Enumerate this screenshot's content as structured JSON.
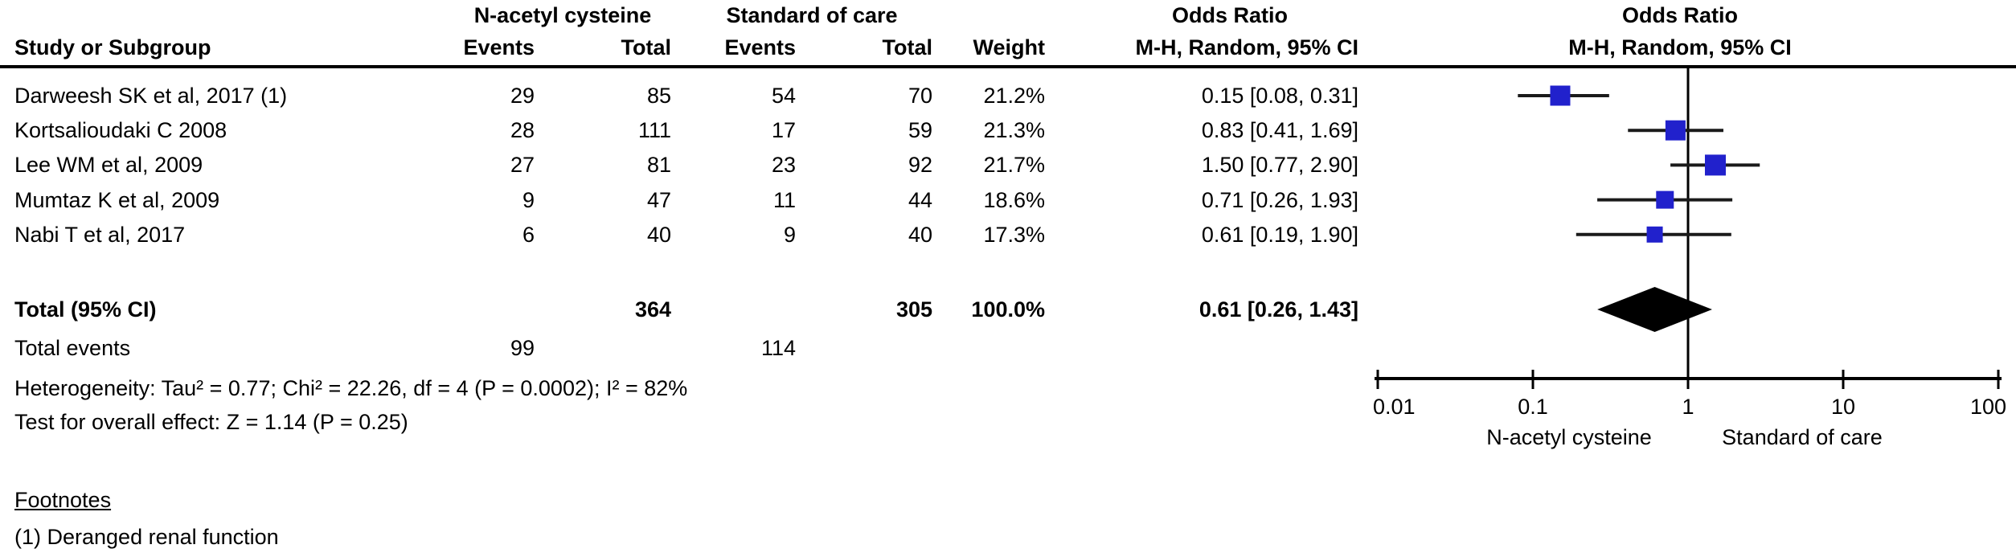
{
  "table": {
    "group1_header": "N-acetyl cysteine",
    "group2_header": "Standard of care",
    "or_header_line1": "Odds Ratio",
    "or_header_line2": "M-H, Random, 95% CI",
    "plot_header_line1": "Odds Ratio",
    "plot_header_line2": "M-H, Random, 95% CI",
    "col_study": "Study or Subgroup",
    "col_events": "Events",
    "col_total": "Total",
    "col_weight": "Weight",
    "rows": [
      {
        "study": "Darweesh SK et al, 2017 (1)",
        "e1": "29",
        "t1": "85",
        "e2": "54",
        "t2": "70",
        "weight": "21.2%",
        "or_ci": "0.15 [0.08, 0.31]"
      },
      {
        "study": "Kortsalioudaki C 2008",
        "e1": "28",
        "t1": "111",
        "e2": "17",
        "t2": "59",
        "weight": "21.3%",
        "or_ci": "0.83 [0.41, 1.69]"
      },
      {
        "study": "Lee WM et al, 2009",
        "e1": "27",
        "t1": "81",
        "e2": "23",
        "t2": "92",
        "weight": "21.7%",
        "or_ci": "1.50 [0.77, 2.90]"
      },
      {
        "study": "Mumtaz K et al, 2009",
        "e1": "9",
        "t1": "47",
        "e2": "11",
        "t2": "44",
        "weight": "18.6%",
        "or_ci": "0.71 [0.26, 1.93]"
      },
      {
        "study": "Nabi T et al, 2017",
        "e1": "6",
        "t1": "40",
        "e2": "9",
        "t2": "40",
        "weight": "17.3%",
        "or_ci": "0.61 [0.19, 1.90]"
      }
    ],
    "total_row": {
      "label": "Total (95% CI)",
      "t1": "364",
      "t2": "305",
      "weight": "100.0%",
      "or_ci": "0.61 [0.26, 1.43]"
    },
    "total_events_row": {
      "label": "Total events",
      "e1": "99",
      "e2": "114"
    },
    "heterogeneity": "Heterogeneity: Tau² = 0.77; Chi² = 22.26, df = 4 (P = 0.0002); I² = 82%",
    "overall_effect": "Test for overall effect: Z = 1.14 (P = 0.25)",
    "footnotes_label": "Footnotes",
    "footnote_1": "(1) Deranged renal function"
  },
  "chart_data": {
    "type": "forest",
    "title": "Odds Ratio",
    "effect_measure": "M-H, Random, 95% CI",
    "x_scale": "log10",
    "x_range": [
      0.01,
      100
    ],
    "x_ticks": [
      "0.01",
      "0.1",
      "1",
      "10",
      "100"
    ],
    "null_line_value": 1,
    "axis_left_label": "N-acetyl cysteine",
    "axis_right_label": "Standard of care",
    "studies": [
      {
        "name": "Darweesh SK et al, 2017 (1)",
        "or": 0.15,
        "ci_low": 0.08,
        "ci_high": 0.31,
        "weight_pct": 21.2
      },
      {
        "name": "Kortsalioudaki C 2008",
        "or": 0.83,
        "ci_low": 0.41,
        "ci_high": 1.69,
        "weight_pct": 21.3
      },
      {
        "name": "Lee WM et al, 2009",
        "or": 1.5,
        "ci_low": 0.77,
        "ci_high": 2.9,
        "weight_pct": 21.7
      },
      {
        "name": "Mumtaz K et al, 2009",
        "or": 0.71,
        "ci_low": 0.26,
        "ci_high": 1.93,
        "weight_pct": 18.6
      },
      {
        "name": "Nabi T et al, 2017",
        "or": 0.61,
        "ci_low": 0.19,
        "ci_high": 1.9,
        "weight_pct": 17.3
      }
    ],
    "total": {
      "or": 0.61,
      "ci_low": 0.26,
      "ci_high": 1.43
    },
    "marker_color": "#2121CC",
    "line_color": "#1a1a1a",
    "diamond_color": "#000000"
  }
}
